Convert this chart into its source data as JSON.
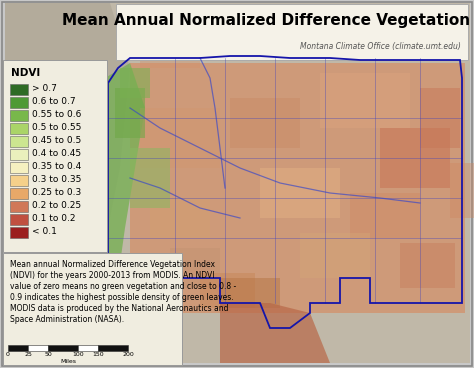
{
  "title": "Mean Annual Normalized Difference Vegetation Index",
  "subtitle": "Montana Climate Office (climate.umt.edu)",
  "legend_title": "NDVI",
  "legend_labels": [
    "> 0.7",
    "0.6 to 0.7",
    "0.55 to 0.6",
    "0.5 to 0.55",
    "0.45 to 0.5",
    "0.4 to 0.45",
    "0.35 to 0.4",
    "0.3 to 0.35",
    "0.25 to 0.3",
    "0.2 to 0.25",
    "0.1 to 0.2",
    "< 0.1"
  ],
  "legend_colors": [
    "#2e6b25",
    "#4e9a35",
    "#78b84a",
    "#aad468",
    "#cce690",
    "#eaf0bc",
    "#f5f0c0",
    "#f5d08a",
    "#e8a868",
    "#d07858",
    "#c05040",
    "#9b1f1f"
  ],
  "description": "Mean annual Normalized Difference Vegetation Index\n(NDVI) for the years 2000-2013 from MODIS. An NDVI\nvalue of zero means no green vegetation and close to 0.8 -\n0.9 indicates the highest possible density of green leaves.\nMODIS data is produced by the National Aeronautics and\nSpace Administration (NASA).",
  "scale_labels": [
    "0",
    "25",
    "50",
    "100",
    "150",
    "200"
  ],
  "scale_unit": "Miles",
  "bg_color": "#c8c8c8",
  "map_main_color": "#d4a882",
  "map_west_color": "#8ab870",
  "map_dark_color": "#c07858",
  "legend_box_color": "#f0ede0",
  "title_box_color": "#f5f2e8",
  "outer_border_color": "#888888",
  "title_fontsize": 11,
  "subtitle_fontsize": 5.5,
  "legend_title_fontsize": 7.5,
  "legend_fontsize": 6.5,
  "desc_fontsize": 5.5
}
